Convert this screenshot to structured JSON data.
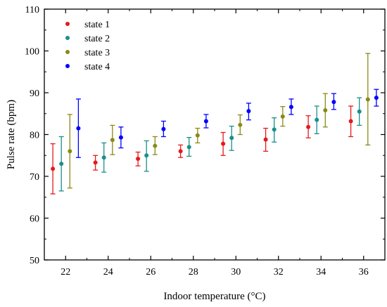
{
  "chart_data": {
    "type": "scatter",
    "title": "",
    "xlabel": "Indoor temperature (°C)",
    "ylabel": "Pulse rate (bpm)",
    "xlim": [
      21,
      37
    ],
    "ylim": [
      50,
      110
    ],
    "xticks": [
      22,
      24,
      26,
      28,
      30,
      32,
      34,
      36
    ],
    "yticks": [
      50,
      60,
      70,
      80,
      90,
      100,
      110
    ],
    "grid": false,
    "legend_position": "top-left",
    "error_bars": true,
    "series": [
      {
        "name": "state 1",
        "color": "#e41a1c",
        "x": [
          21.4,
          23.4,
          25.4,
          27.4,
          29.4,
          31.4,
          33.4,
          35.4
        ],
        "y": [
          71.8,
          73.3,
          74.2,
          76.0,
          77.8,
          78.8,
          81.8,
          83.2
        ],
        "err_low": [
          65.8,
          71.5,
          72.5,
          74.5,
          75.0,
          76.0,
          79.2,
          79.5
        ],
        "err_high": [
          77.8,
          75.0,
          75.8,
          77.5,
          80.5,
          81.5,
          84.5,
          86.8
        ]
      },
      {
        "name": "state 2",
        "color": "#1a8f8a",
        "x": [
          21.8,
          23.8,
          25.8,
          27.8,
          29.8,
          31.8,
          33.8,
          35.8
        ],
        "y": [
          73.0,
          74.5,
          75.0,
          77.0,
          79.2,
          81.2,
          83.5,
          85.5
        ],
        "err_low": [
          66.5,
          71.0,
          71.2,
          74.8,
          76.2,
          78.2,
          80.2,
          82.2
        ],
        "err_high": [
          79.5,
          78.0,
          78.5,
          79.3,
          82.0,
          84.0,
          86.8,
          88.8
        ]
      },
      {
        "name": "state 3",
        "color": "#8a8a14",
        "x": [
          22.2,
          24.2,
          26.2,
          28.2,
          30.2,
          32.2,
          34.2,
          36.2
        ],
        "y": [
          76.0,
          78.7,
          77.3,
          79.8,
          82.3,
          84.3,
          85.8,
          88.4
        ],
        "err_low": [
          67.2,
          75.2,
          75.2,
          78.0,
          80.0,
          82.0,
          81.8,
          77.5
        ],
        "err_high": [
          84.8,
          82.2,
          79.5,
          81.5,
          84.7,
          86.7,
          89.8,
          99.4
        ]
      },
      {
        "name": "state 4",
        "color": "#0000ff",
        "x": [
          22.6,
          24.6,
          26.6,
          28.6,
          30.6,
          32.6,
          34.6,
          36.6
        ],
        "y": [
          81.5,
          79.3,
          81.3,
          83.2,
          85.6,
          86.6,
          87.8,
          88.8
        ],
        "err_low": [
          74.5,
          76.8,
          79.5,
          81.6,
          83.5,
          84.8,
          86.0,
          86.8
        ],
        "err_high": [
          88.5,
          81.8,
          83.2,
          84.8,
          87.5,
          88.5,
          89.8,
          90.8
        ]
      }
    ]
  }
}
